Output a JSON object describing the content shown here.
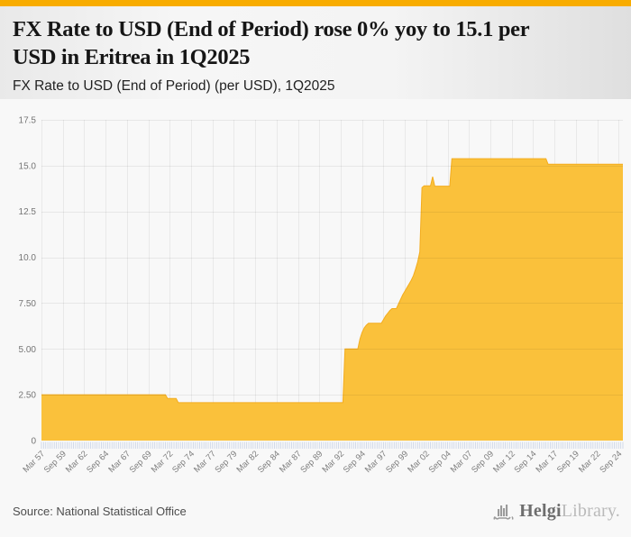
{
  "header": {
    "title_line1": "FX Rate to USD (End of Period) rose 0% yoy to 15.1 per",
    "title_line2": "USD in Eritrea in 1Q2025",
    "subtitle": "FX Rate to USD (End of Period) (per USD), 1Q2025"
  },
  "footer": {
    "source": "Source: National Statistical Office",
    "logo_primary": "Helgi",
    "logo_secondary": "Library."
  },
  "colors": {
    "topbar": "#F8AC00",
    "area_fill": "#FAC13B",
    "area_line": "#F3AC1E",
    "comb_tick": "#C9D3E6",
    "grid_line_over_white": "#e9e9e9",
    "grid_line_overlay": "rgba(0,0,0,0.065)",
    "axis_text": "#757575",
    "x_label_text": "#7e7e7e"
  },
  "chart_data": {
    "type": "area",
    "title": "FX Rate to USD (End of Period) rose 0% yoy to 15.1 per USD in Eritrea in 1Q2025",
    "subtitle": "FX Rate to USD (End of Period) (per USD), 1Q2025",
    "country": "Eritrea",
    "unit": "per USD",
    "latest_period": "1Q2025",
    "latest_value": 15.1,
    "yoy_change_pct": 0,
    "frequency": "quarterly",
    "start": "1957Q1",
    "end": "2025Q1",
    "ylim": [
      0,
      18.25
    ],
    "grid": true,
    "legend": false,
    "y_ticks": [
      {
        "label": "0",
        "value": 0
      },
      {
        "label": "2.50",
        "value": 2.5
      },
      {
        "label": "5.00",
        "value": 5
      },
      {
        "label": "7.50",
        "value": 7.5
      },
      {
        "label": "10.0",
        "value": 10
      },
      {
        "label": "12.5",
        "value": 12.5
      },
      {
        "label": "15.0",
        "value": 15
      },
      {
        "label": "17.5",
        "value": 17.5
      }
    ],
    "x_tick_step_quarters": 10,
    "x_tick_labels": [
      "Mar 57",
      "Sep 59",
      "Mar 62",
      "Sep 64",
      "Mar 67",
      "Sep 69",
      "Mar 72",
      "Sep 74",
      "Mar 77",
      "Sep 79",
      "Mar 82",
      "Sep 84",
      "Mar 87",
      "Sep 89",
      "Mar 92",
      "Sep 94",
      "Mar 97",
      "Sep 99",
      "Mar 02",
      "Sep 04",
      "Mar 07",
      "Sep 09",
      "Mar 12",
      "Sep 14",
      "Mar 17",
      "Sep 19",
      "Mar 22",
      "Sep 24"
    ],
    "series": [
      {
        "name": "FX Rate to USD (End of Period)",
        "runs_value_count": [
          [
            2.5,
            59
          ],
          [
            2.3,
            5
          ],
          [
            2.07,
            78
          ],
          [
            5.0,
            7
          ],
          [
            5.55,
            1
          ],
          [
            5.9,
            1
          ],
          [
            6.15,
            1
          ],
          [
            6.3,
            1
          ],
          [
            6.4,
            7
          ],
          [
            6.6,
            1
          ],
          [
            6.8,
            1
          ],
          [
            6.95,
            1
          ],
          [
            7.1,
            1
          ],
          [
            7.2,
            3
          ],
          [
            7.45,
            1
          ],
          [
            7.7,
            1
          ],
          [
            7.95,
            1
          ],
          [
            8.15,
            1
          ],
          [
            8.35,
            1
          ],
          [
            8.55,
            1
          ],
          [
            8.75,
            1
          ],
          [
            9.0,
            1
          ],
          [
            9.35,
            1
          ],
          [
            9.75,
            1
          ],
          [
            10.3,
            1
          ],
          [
            13.8,
            1
          ],
          [
            13.9,
            4
          ],
          [
            14.4,
            1
          ],
          [
            13.88,
            8
          ],
          [
            15.38,
            45
          ],
          [
            15.08,
            36
          ]
        ]
      }
    ]
  }
}
